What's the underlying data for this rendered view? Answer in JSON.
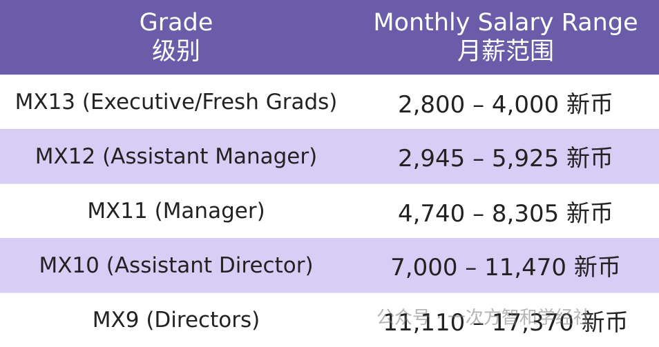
{
  "table": {
    "header": [
      {
        "title": "Grade",
        "subtitle": "级别"
      },
      {
        "title": "Monthly Salary Range",
        "subtitle": "月薪范围"
      }
    ],
    "rows": [
      [
        "MX13 (Executive/Fresh Grads)",
        "2,800 – 4,000 新币"
      ],
      [
        "MX12 (Assistant Manager)",
        "2,945 – 5,925 新币"
      ],
      [
        "MX11 (Manager)",
        "4,740 – 8,305 新币"
      ],
      [
        "MX10 (Assistant Director)",
        "7,000 – 11,470 新币"
      ],
      [
        "MX9 (Directors)",
        "11,110 – 17,370 新币"
      ]
    ]
  },
  "watermark": "公众号 · 一次方智和学经社"
}
